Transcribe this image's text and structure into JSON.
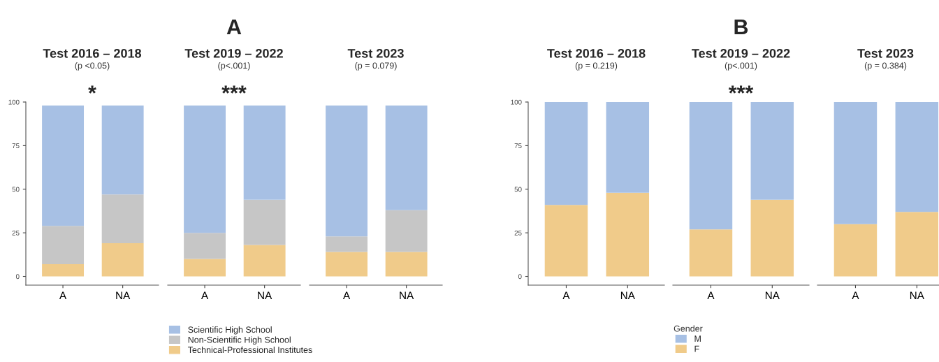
{
  "chart_data": [
    {
      "type": "bar",
      "stacked": true,
      "title": "Test 2016 – 2018",
      "subtitle": "(p <0.05)",
      "categories": [
        "A",
        "NA"
      ],
      "ylim": [
        -5,
        100
      ],
      "yticks": [
        0,
        25,
        50,
        75,
        100
      ],
      "annotations": [
        "*"
      ],
      "series": [
        {
          "color": "#f0cb8a",
          "values": [
            7,
            19
          ]
        },
        {
          "color": "#c6c6c6",
          "values": [
            22,
            28
          ]
        },
        {
          "color": "#a7c0e4",
          "values": [
            69,
            51
          ]
        }
      ]
    },
    {
      "type": "bar",
      "stacked": true,
      "title": "Test 2019 – 2022",
      "subtitle": "(p<.001)",
      "categories": [
        "A",
        "NA"
      ],
      "ylim": [
        -5,
        100
      ],
      "tick_labels": "x",
      "legend": "bottom",
      "annotations": [
        "A",
        "***"
      ],
      "series": [
        {
          "name": "Technical-Professional Institutes",
          "color": "#f0cb8a",
          "values": [
            10,
            18
          ]
        },
        {
          "name": "Non-Scientific High School",
          "color": "#c6c6c6",
          "values": [
            15,
            26
          ]
        },
        {
          "name": "Scientific High School",
          "color": "#a7c0e4",
          "values": [
            73,
            54
          ]
        }
      ]
    },
    {
      "type": "bar",
      "stacked": true,
      "title": "Test 2023",
      "subtitle": "(p = 0.079)",
      "categories": [
        "A",
        "NA"
      ],
      "ylim": [
        -5,
        100
      ],
      "tick_labels": "x",
      "series": [
        {
          "color": "#f0cb8a",
          "values": [
            14,
            14
          ]
        },
        {
          "color": "#c6c6c6",
          "values": [
            9,
            24
          ]
        },
        {
          "color": "#a7c0e4",
          "values": [
            75,
            60
          ]
        }
      ]
    },
    {
      "type": "bar",
      "stacked": true,
      "title": "Test 2016 – 2018",
      "subtitle": "(p = 0.219)",
      "categories": [
        "A",
        "NA"
      ],
      "ylim": [
        -5,
        100
      ],
      "yticks": [
        0,
        25,
        50,
        75,
        100
      ],
      "series": [
        {
          "color": "#f0cb8a",
          "values": [
            41,
            48
          ]
        },
        {
          "color": "#a7c0e4",
          "values": [
            59,
            52
          ]
        }
      ]
    },
    {
      "type": "bar",
      "stacked": true,
      "title": "Test 2019 – 2022",
      "subtitle": "(p<.001)",
      "categories": [
        "A",
        "NA"
      ],
      "ylim": [
        -5,
        100
      ],
      "tick_labels": "x",
      "legend": "bottom",
      "legend_title": "Gender",
      "annotations": [
        "B",
        "***"
      ],
      "series": [
        {
          "name": "F",
          "color": "#f0cb8a",
          "values": [
            27,
            44
          ]
        },
        {
          "name": "M",
          "color": "#a7c0e4",
          "values": [
            73,
            56
          ]
        }
      ]
    },
    {
      "type": "bar",
      "stacked": true,
      "title": "Test 2023",
      "subtitle": "(p = 0.384)",
      "categories": [
        "A",
        "NA"
      ],
      "ylim": [
        -5,
        100
      ],
      "tick_labels": "x",
      "series": [
        {
          "color": "#f0cb8a",
          "values": [
            30,
            37
          ]
        },
        {
          "color": "#a7c0e4",
          "values": [
            70,
            63
          ]
        }
      ]
    }
  ]
}
